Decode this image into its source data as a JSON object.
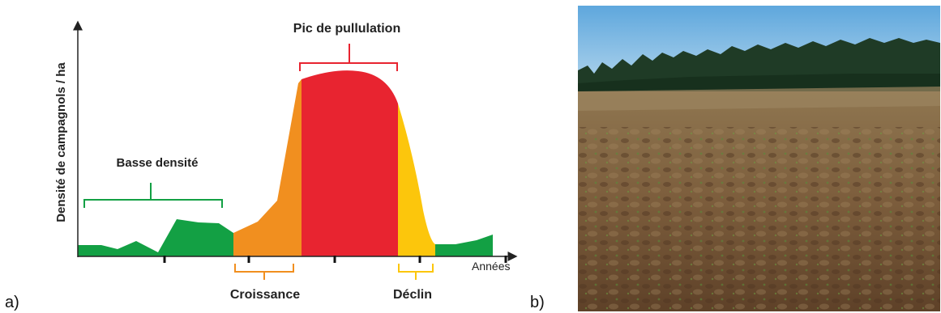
{
  "panel_a": {
    "letter": "a)",
    "y_axis_label": "Densité de campagnols / ha",
    "x_axis_label": "Années",
    "phases": {
      "low": "Basse densité",
      "growth": "Croissance",
      "peak": "Pic de pullulation",
      "decline": "Déclin"
    },
    "colors": {
      "low": "#13a044",
      "growth": "#f18f1f",
      "peak": "#e82430",
      "decline": "#fcc60c"
    }
  },
  "panel_b": {
    "letter": "b)",
    "photo": "field-with-vole-damage-and-forest-edge",
    "colors": {
      "sky": "#6fb2e0",
      "forest": "#1d3a24",
      "soil": "#8a6a45"
    }
  }
}
